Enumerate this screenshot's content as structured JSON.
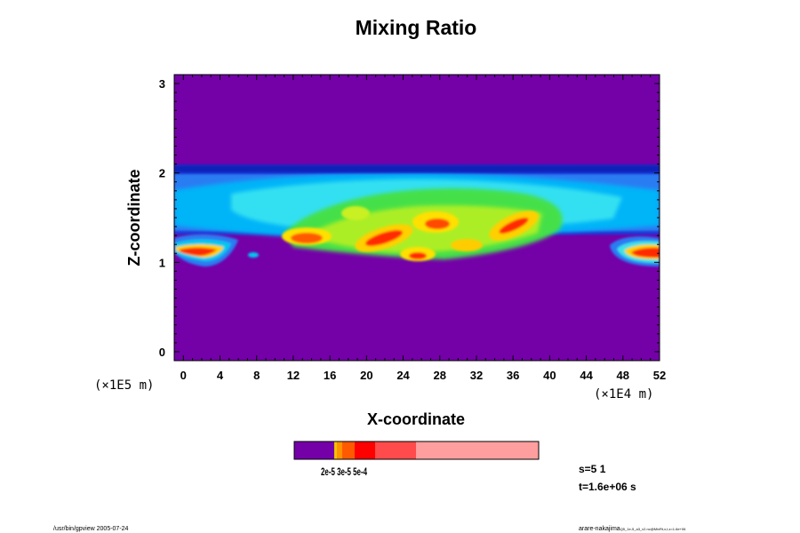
{
  "chart_data": {
    "type": "heatmap",
    "title": "Mixing Ratio",
    "xlabel": "X-coordinate",
    "ylabel": "Z-coordinate",
    "x_multiplier": "(×1E4 m)",
    "y_multiplier": "(×1E5 m)",
    "xlim": [
      -1,
      52
    ],
    "ylim": [
      -0.1,
      3.1
    ],
    "x_ticks": [
      "0",
      "4",
      "8",
      "12",
      "16",
      "20",
      "24",
      "28",
      "32",
      "36",
      "40",
      "44",
      "48",
      "52"
    ],
    "x_tick_values": [
      0,
      4,
      8,
      12,
      16,
      20,
      24,
      28,
      32,
      36,
      40,
      44,
      48,
      52
    ],
    "y_ticks": [
      "0",
      "1",
      "2",
      "3"
    ],
    "y_tick_values": [
      0,
      1,
      2,
      3
    ],
    "background_color": "#7400a8",
    "colorbar": {
      "labels_text": "2e-5 3e-5 5e-4",
      "colors": [
        "#7400a8",
        "#f2c200",
        "#ff9300",
        "#ff5a00",
        "#ff0000",
        "#ff4b4b",
        "#ff9e9e"
      ]
    },
    "annotations": {
      "s": "s=5 1",
      "t": "t=1.6e+06 s"
    }
  },
  "footer": {
    "left": "/usr/bin/gpview 2005-07-24",
    "right_main": "arare-nakajima",
    "right_small": "Q5_1e-5_a3_v2.nc@MixRt,x,t,z=1.6e+06"
  }
}
